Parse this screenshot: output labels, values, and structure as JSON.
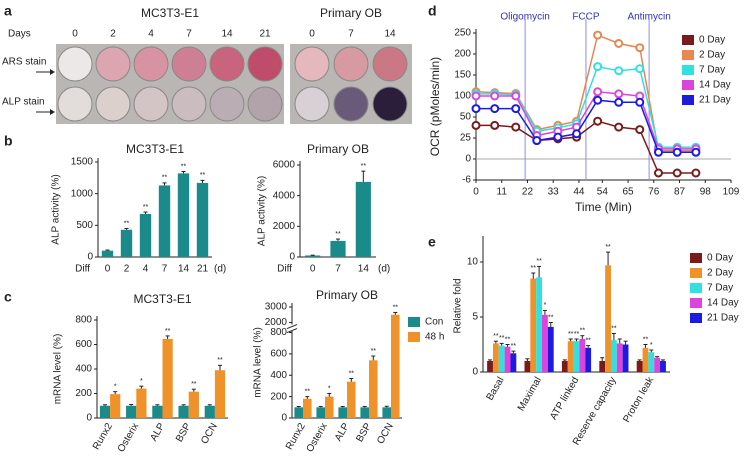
{
  "panel_a": {
    "label": "a",
    "groups": [
      {
        "title": "MC3T3-E1",
        "days_label": "Days",
        "days": [
          0,
          2,
          4,
          7,
          14,
          21
        ]
      },
      {
        "title": "Primary OB",
        "days": [
          0,
          7,
          14
        ]
      }
    ],
    "rows": [
      "ARS stain",
      "ALP stain"
    ]
  },
  "panel_labels": [
    "b",
    "c",
    "d",
    "e"
  ],
  "chart_data": [
    {
      "type": "bar",
      "title": "MC3T3-E1",
      "y_label": "ALP activity (%)",
      "x_prefix": "Diff",
      "x_suffix": "(d)",
      "categories": [
        "0",
        "2",
        "4",
        "7",
        "14",
        "21"
      ],
      "values": [
        100,
        430,
        680,
        1130,
        1320,
        1170
      ],
      "errors": [
        10,
        20,
        30,
        40,
        30,
        40
      ],
      "annotations": [
        null,
        "**",
        "**",
        "**",
        "**",
        "**"
      ],
      "color": "#1a8a8a",
      "ylim": [
        0,
        1500
      ],
      "yticks": [
        0,
        500,
        1000,
        1500
      ]
    },
    {
      "type": "bar",
      "title": "Primary OB",
      "y_label": "ALP activity (%)",
      "x_prefix": "Diff",
      "x_suffix": "(d)",
      "categories": [
        "0",
        "7",
        "14"
      ],
      "values": [
        100,
        1050,
        4900
      ],
      "errors": [
        20,
        120,
        700
      ],
      "annotations": [
        null,
        "**",
        "**"
      ],
      "color": "#1a8a8a",
      "ylim": [
        0,
        6000
      ],
      "yticks": [
        0,
        2000,
        4000,
        6000
      ]
    },
    {
      "type": "bar",
      "title": "MC3T3-E1",
      "y_label": "mRNA level (%)",
      "categories": [
        "Runx2",
        "Osterix",
        "ALP",
        "BSP",
        "OCN"
      ],
      "series": [
        {
          "color": "#1a8a8a",
          "values": [
            100,
            100,
            100,
            100,
            100
          ],
          "errors": [
            8,
            10,
            8,
            8,
            8
          ]
        },
        {
          "color": "#f0922a",
          "values": [
            195,
            240,
            645,
            215,
            390
          ],
          "errors": [
            20,
            20,
            25,
            20,
            40
          ],
          "annotations": [
            "*",
            "*",
            "**",
            "**",
            "**"
          ]
        }
      ],
      "ylim": [
        0,
        800
      ],
      "yticks": [
        0,
        200,
        400,
        600,
        800
      ]
    },
    {
      "type": "bar",
      "title": "Primary OB",
      "y_label": "mRNA level (%)",
      "categories": [
        "Runx2",
        "Osterix",
        "ALP",
        "BSP",
        "OCN"
      ],
      "series": [
        {
          "name": "Con",
          "color": "#1a8a8a",
          "values": [
            100,
            100,
            100,
            100,
            100
          ],
          "errors": [
            8,
            8,
            8,
            8,
            10
          ]
        },
        {
          "name": "48 h",
          "color": "#f0922a",
          "values": [
            180,
            200,
            340,
            540,
            2500
          ],
          "errors": [
            20,
            30,
            30,
            40,
            150
          ],
          "annotations": [
            "**",
            "*",
            "**",
            "**",
            "**"
          ]
        }
      ],
      "ylim": [
        0,
        3000
      ],
      "y_break": [
        800,
        2000
      ],
      "yticks": [
        0,
        200,
        400,
        600,
        800,
        2000,
        3000
      ],
      "legend": "right"
    },
    {
      "type": "line",
      "y_label": "OCR (pMoles/min)",
      "x_label": "Time (Min)",
      "x": [
        0,
        8,
        17,
        26,
        35,
        43,
        52,
        61,
        70,
        78,
        86,
        94
      ],
      "series": [
        {
          "name": "0 Day",
          "color": "#7b1a1a",
          "values": [
            40,
            40,
            38,
            22,
            24,
            26,
            45,
            38,
            35,
            -4,
            -4,
            -4
          ]
        },
        {
          "name": "2 Day",
          "color": "#e8874f",
          "values": [
            110,
            108,
            106,
            35,
            40,
            45,
            245,
            225,
            215,
            10,
            10,
            10
          ]
        },
        {
          "name": "7 Day",
          "color": "#33e0e0",
          "values": [
            105,
            105,
            103,
            33,
            37,
            42,
            170,
            160,
            165,
            14,
            14,
            14
          ]
        },
        {
          "name": "14 Day",
          "color": "#dd44dd",
          "values": [
            100,
            100,
            100,
            28,
            33,
            38,
            110,
            105,
            100,
            12,
            12,
            12
          ]
        },
        {
          "name": "21 Day",
          "color": "#1c1ce0",
          "values": [
            70,
            70,
            70,
            22,
            26,
            30,
            90,
            85,
            85,
            8,
            8,
            8
          ]
        }
      ],
      "events": [
        {
          "x": 21,
          "label": "Oligomycin"
        },
        {
          "x": 47,
          "label": "FCCP"
        },
        {
          "x": 74,
          "label": "Antimycin"
        }
      ],
      "xlim": [
        0,
        109
      ],
      "xticks": [
        0,
        11,
        22,
        33,
        44,
        54,
        65,
        76,
        87,
        98,
        109
      ],
      "ylim": [
        -6,
        250
      ],
      "yticks": [
        -6,
        0,
        25,
        50,
        100,
        150,
        200,
        250
      ],
      "legend": "upper right"
    },
    {
      "type": "bar",
      "y_label": "Relative fold",
      "categories": [
        "Basal",
        "Maximal",
        "ATP linked",
        "Reserve capacity",
        "Proton leak"
      ],
      "series": [
        {
          "name": "0 Day",
          "color": "#7b1a1a",
          "values": [
            1,
            1,
            1,
            1,
            1
          ],
          "errors": [
            0.1,
            0.2,
            0.1,
            0.3,
            0.1
          ]
        },
        {
          "name": "2 Day",
          "color": "#f0922a",
          "values": [
            2.6,
            8.5,
            2.8,
            9.7,
            2.2
          ],
          "errors": [
            0.2,
            0.5,
            0.2,
            1.2,
            0.3
          ],
          "annotations": [
            "**",
            "**",
            "**",
            "**",
            "**"
          ]
        },
        {
          "name": "7 Day",
          "color": "#33e0e0",
          "values": [
            2.4,
            8.6,
            2.8,
            2.9,
            1.8
          ],
          "errors": [
            0.2,
            1.0,
            0.2,
            0.6,
            0.2
          ],
          "annotations": [
            "**",
            "**",
            "**",
            "**",
            "*"
          ]
        },
        {
          "name": "14 Day",
          "color": "#dd44dd",
          "values": [
            2.3,
            5.2,
            3.0,
            2.6,
            1.3
          ],
          "errors": [
            0.2,
            0.4,
            0.3,
            0.4,
            0.1
          ],
          "annotations": [
            "**",
            "*",
            "**",
            null,
            null
          ]
        },
        {
          "name": "21 Day",
          "color": "#1c1ce0",
          "values": [
            1.7,
            4.1,
            2.2,
            2.5,
            1.0
          ],
          "errors": [
            0.2,
            0.4,
            0.2,
            0.3,
            0.1
          ],
          "annotations": [
            "**",
            "**",
            "**",
            null,
            null
          ]
        }
      ],
      "ylim": [
        0,
        12
      ],
      "yticks": [
        0,
        5,
        10
      ],
      "legend": "right"
    }
  ]
}
